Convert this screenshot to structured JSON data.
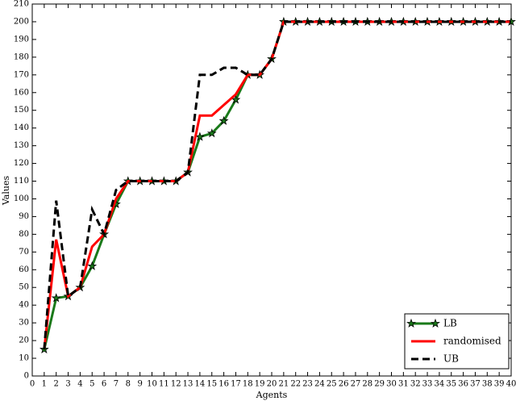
{
  "chart_data": {
    "type": "line",
    "x_label": "Agents",
    "y_label": "Values",
    "x": [
      1,
      2,
      3,
      4,
      5,
      6,
      7,
      8,
      9,
      10,
      11,
      12,
      13,
      14,
      15,
      16,
      17,
      18,
      19,
      20,
      21,
      22,
      23,
      24,
      25,
      26,
      27,
      28,
      29,
      30,
      31,
      32,
      33,
      34,
      35,
      36,
      37,
      38,
      39,
      40
    ],
    "series": [
      {
        "name": "LB",
        "color": "#1a7a1a",
        "marker": "star",
        "linestyle": "solid",
        "values": [
          15,
          44,
          45,
          50,
          62,
          80,
          97,
          110,
          110,
          110,
          110,
          110,
          115,
          135,
          137,
          144,
          156,
          170,
          170,
          179,
          200,
          200,
          200,
          200,
          200,
          200,
          200,
          200,
          200,
          200,
          200,
          200,
          200,
          200,
          200,
          200,
          200,
          200,
          200,
          200
        ]
      },
      {
        "name": "randomised",
        "color": "#ff0000",
        "marker": "none",
        "linestyle": "solid",
        "values": [
          15,
          77,
          45,
          50,
          73,
          80,
          100,
          110,
          110,
          110,
          110,
          110,
          115,
          147,
          147,
          153,
          159,
          170,
          170,
          179,
          200,
          200,
          200,
          200,
          200,
          200,
          200,
          200,
          200,
          200,
          200,
          200,
          200,
          200,
          200,
          200,
          200,
          200,
          200,
          200
        ]
      },
      {
        "name": "UB",
        "color": "#000000",
        "marker": "none",
        "linestyle": "dashed",
        "values": [
          15,
          99,
          45,
          50,
          94,
          80,
          105,
          110,
          110,
          110,
          110,
          110,
          115,
          170,
          170,
          174,
          174,
          170,
          170,
          179,
          200,
          200,
          200,
          200,
          200,
          200,
          200,
          200,
          200,
          200,
          200,
          200,
          200,
          200,
          200,
          200,
          200,
          200,
          200,
          200
        ]
      }
    ],
    "xlim": [
      0,
      40
    ],
    "xticks": [
      0,
      1,
      2,
      3,
      4,
      5,
      6,
      7,
      8,
      9,
      10,
      11,
      12,
      13,
      14,
      15,
      16,
      17,
      18,
      19,
      20,
      21,
      22,
      23,
      24,
      25,
      26,
      27,
      28,
      29,
      30,
      31,
      32,
      33,
      34,
      35,
      36,
      37,
      38,
      39,
      40
    ],
    "ylim": [
      0,
      210
    ],
    "yticks": [
      0,
      10,
      20,
      30,
      40,
      50,
      60,
      70,
      80,
      90,
      100,
      110,
      120,
      130,
      140,
      150,
      160,
      170,
      180,
      190,
      200,
      210
    ],
    "legend": "lower right"
  }
}
